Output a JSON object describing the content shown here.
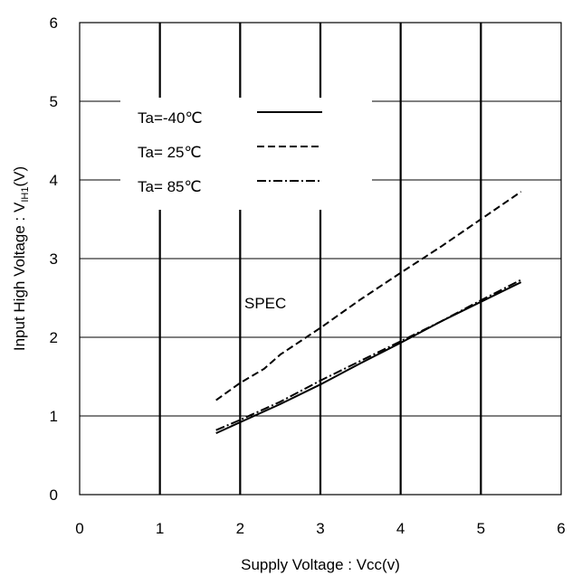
{
  "chart_data": {
    "type": "line",
    "title": "",
    "xlabel": "Supply Voltage : Vcc(v)",
    "ylabel_prefix": "Input High Voltage : V",
    "ylabel_sub": "IH1",
    "ylabel_suffix": "(V)",
    "xlim": [
      0,
      6
    ],
    "ylim": [
      0,
      6
    ],
    "xticks": [
      "0",
      "1",
      "2",
      "3",
      "4",
      "5",
      "6"
    ],
    "yticks": [
      "0",
      "1",
      "2",
      "3",
      "4",
      "5",
      "6"
    ],
    "grid": true,
    "legend_position": "top-left",
    "annotation": "SPEC",
    "series": [
      {
        "name": "Ta=-40℃",
        "dash": "solid",
        "x": [
          1.7,
          2.0,
          2.5,
          3.0,
          3.5,
          4.0,
          4.5,
          5.0,
          5.5
        ],
        "y": [
          0.78,
          0.92,
          1.15,
          1.4,
          1.67,
          1.93,
          2.2,
          2.45,
          2.7
        ]
      },
      {
        "name": "Ta= 25℃",
        "dash": "dashed",
        "x": [
          1.7,
          2.0,
          2.3,
          2.5,
          3.0,
          3.5,
          4.0,
          4.5,
          5.0,
          5.5
        ],
        "y": [
          1.2,
          1.42,
          1.6,
          1.78,
          2.12,
          2.48,
          2.82,
          3.15,
          3.5,
          3.85
        ]
      },
      {
        "name": "Ta= 85℃",
        "dash": "dashdot",
        "x": [
          1.7,
          2.0,
          2.5,
          3.0,
          3.5,
          4.0,
          4.5,
          5.0,
          5.5
        ],
        "y": [
          0.82,
          0.95,
          1.18,
          1.45,
          1.7,
          1.95,
          2.2,
          2.47,
          2.73
        ]
      }
    ]
  }
}
